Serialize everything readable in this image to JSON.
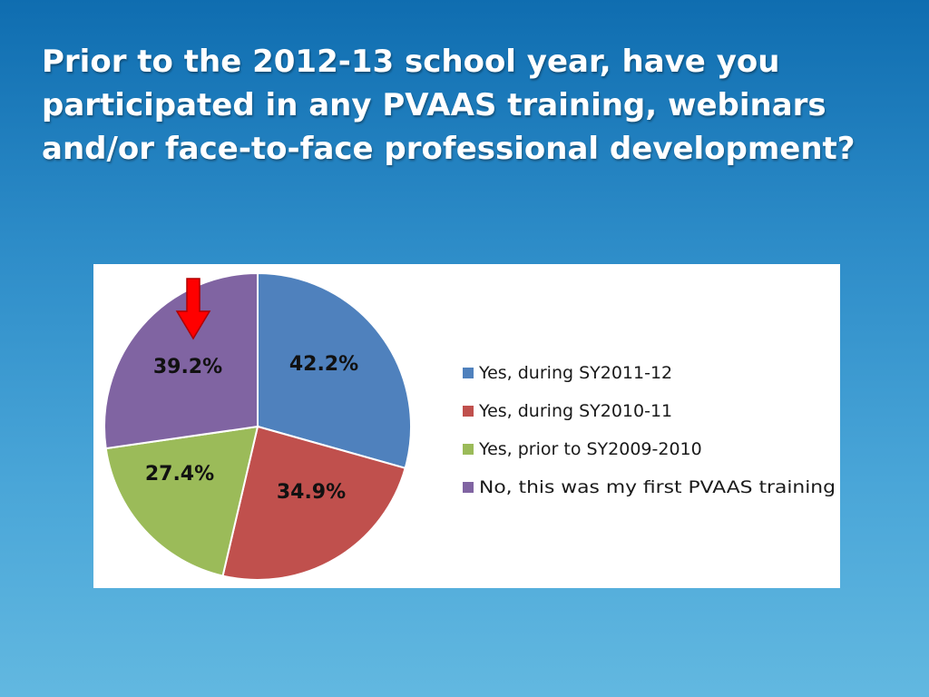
{
  "slide": {
    "title": "Prior to the 2012-13 school year, have you participated in any PVAAS training, webinars and/or face-to-face professional development?"
  },
  "chart_data": {
    "type": "pie",
    "title": "",
    "legend_position": "right",
    "annotation": "red-down-arrow",
    "slices": [
      {
        "label": "Yes, during SY2011-12",
        "value": 42.2,
        "value_text": "42.2%",
        "color": "#4f81bd"
      },
      {
        "label": "Yes, during SY2010-11",
        "value": 34.9,
        "value_text": "34.9%",
        "color": "#c0504d"
      },
      {
        "label": "Yes, prior to SY2009-2010",
        "value": 27.4,
        "value_text": "27.4%",
        "color": "#9bbb59"
      },
      {
        "label": "No, this was my first PVAAS training",
        "value": 39.2,
        "value_text": "39.2%",
        "color": "#8064a2"
      }
    ]
  }
}
